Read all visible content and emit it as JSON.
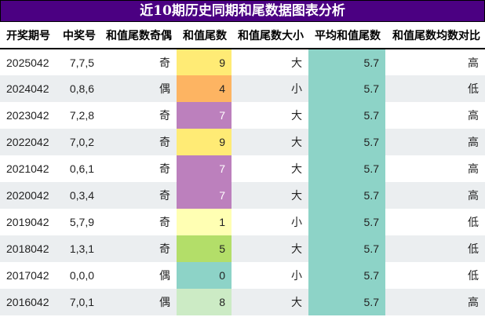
{
  "title": "近10期历史同期和尾数据图表分析",
  "headers": [
    "开奖期号",
    "中奖号",
    "和值尾数奇偶",
    "和值尾数",
    "和值尾数大小",
    "平均和值尾数",
    "和值尾数均数对比"
  ],
  "rows": [
    {
      "issue": "2025042",
      "numbers": "7,7,5",
      "parity": "奇",
      "tail": "9",
      "size": "大",
      "avg": "5.7",
      "compare": "高",
      "color": "#ffeb75",
      "text_color": "#222"
    },
    {
      "issue": "2024042",
      "numbers": "0,8,6",
      "parity": "偶",
      "tail": "4",
      "size": "小",
      "avg": "5.7",
      "compare": "低",
      "color": "#fdb462",
      "text_color": "#222"
    },
    {
      "issue": "2023042",
      "numbers": "7,2,8",
      "parity": "奇",
      "tail": "7",
      "size": "大",
      "avg": "5.7",
      "compare": "高",
      "color": "#bc80bd",
      "text_color": "#ffffff"
    },
    {
      "issue": "2022042",
      "numbers": "7,0,2",
      "parity": "奇",
      "tail": "9",
      "size": "大",
      "avg": "5.7",
      "compare": "高",
      "color": "#ffeb75",
      "text_color": "#222"
    },
    {
      "issue": "2021042",
      "numbers": "0,6,1",
      "parity": "奇",
      "tail": "7",
      "size": "大",
      "avg": "5.7",
      "compare": "高",
      "color": "#bc80bd",
      "text_color": "#ffffff"
    },
    {
      "issue": "2020042",
      "numbers": "0,3,4",
      "parity": "奇",
      "tail": "7",
      "size": "大",
      "avg": "5.7",
      "compare": "高",
      "color": "#bc80bd",
      "text_color": "#ffffff"
    },
    {
      "issue": "2019042",
      "numbers": "5,7,9",
      "parity": "奇",
      "tail": "1",
      "size": "小",
      "avg": "5.7",
      "compare": "低",
      "color": "#ffffb3",
      "text_color": "#222"
    },
    {
      "issue": "2018042",
      "numbers": "1,3,1",
      "parity": "奇",
      "tail": "5",
      "size": "大",
      "avg": "5.7",
      "compare": "低",
      "color": "#b3de69",
      "text_color": "#222"
    },
    {
      "issue": "2017042",
      "numbers": "0,0,0",
      "parity": "偶",
      "tail": "0",
      "size": "小",
      "avg": "5.7",
      "compare": "低",
      "color": "#8dd3c7",
      "text_color": "#222"
    },
    {
      "issue": "2016042",
      "numbers": "7,0,1",
      "parity": "偶",
      "tail": "8",
      "size": "大",
      "avg": "5.7",
      "compare": "高",
      "color": "#ccebc5",
      "text_color": "#222"
    }
  ],
  "colors": {
    "title_bg": "#4b0082",
    "avg_bg": "#8dd3c7",
    "alt_row": "#ebeef0"
  }
}
